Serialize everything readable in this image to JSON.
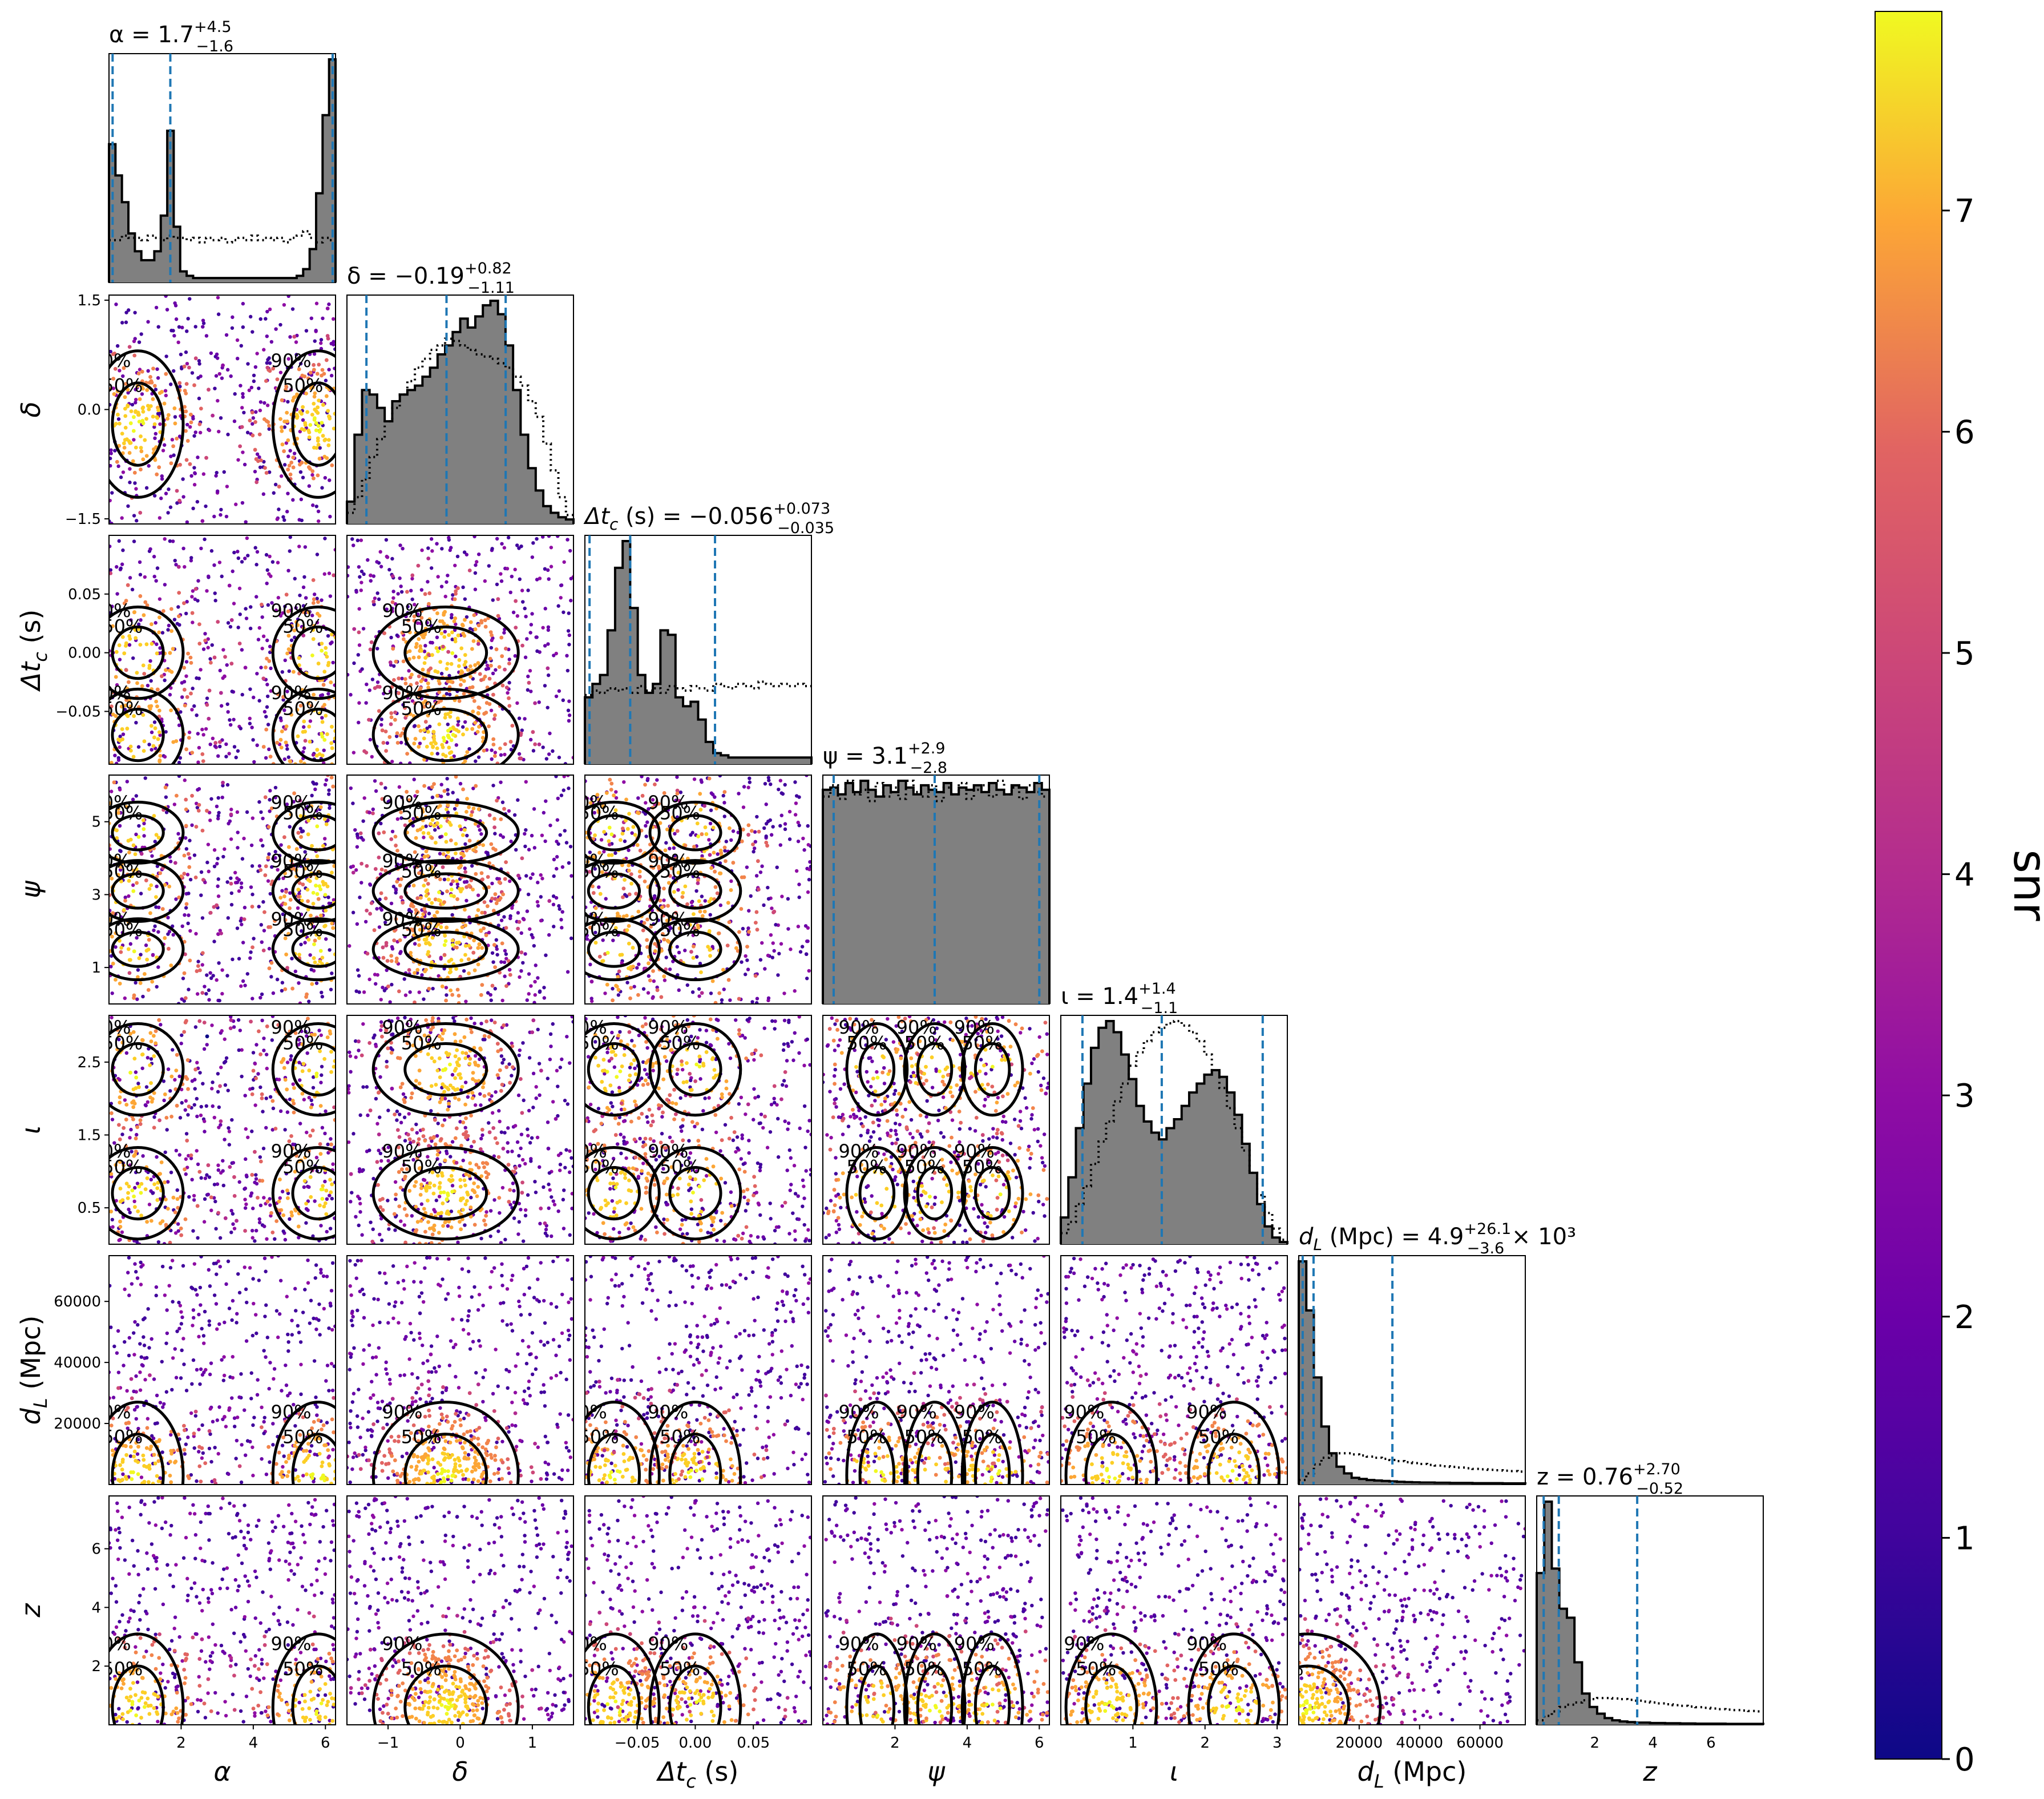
{
  "chart_data": {
    "type": "corner",
    "colorbar": {
      "label": "snr",
      "min": 0,
      "max": 7.9,
      "ticks": [
        "0",
        "1",
        "2",
        "3",
        "4",
        "5",
        "6",
        "7"
      ],
      "colormap": "plasma"
    },
    "colors": {
      "histogram_fill": "#808080",
      "quantile_line": "#1f77b4",
      "contour": "#000000"
    },
    "parameters": [
      {
        "key": "alpha",
        "label": "α",
        "range": [
          0,
          6.28
        ],
        "title_main": "α = 1.7",
        "title_sup": "+4.5",
        "title_sub": "−1.6",
        "title_tail": "",
        "quantiles": [
          0.1,
          1.7,
          6.2
        ],
        "x_ticks": [
          {
            "v": 2,
            "t": "2"
          },
          {
            "v": 4,
            "t": "4"
          },
          {
            "v": 6,
            "t": "6"
          }
        ],
        "y_ticks": [],
        "posterior": [
          0.62,
          0.48,
          0.36,
          0.22,
          0.14,
          0.1,
          0.1,
          0.14,
          0.3,
          0.68,
          0.25,
          0.05,
          0.03,
          0.02,
          0.02,
          0.02,
          0.02,
          0.02,
          0.02,
          0.02,
          0.02,
          0.02,
          0.02,
          0.02,
          0.02,
          0.02,
          0.02,
          0.02,
          0.02,
          0.03,
          0.06,
          0.15,
          0.4,
          0.75,
          1.0
        ],
        "prior": [
          0.19,
          0.19,
          0.21,
          0.2,
          0.2,
          0.19,
          0.21,
          0.2,
          0.19,
          0.21,
          0.2,
          0.2,
          0.19,
          0.2,
          0.18,
          0.2,
          0.19,
          0.2,
          0.18,
          0.19,
          0.2,
          0.19,
          0.21,
          0.19,
          0.2,
          0.19,
          0.2,
          0.18,
          0.2,
          0.21,
          0.23,
          0.2,
          0.18,
          0.2,
          0.19
        ]
      },
      {
        "key": "delta",
        "label": "δ",
        "range": [
          -1.57,
          1.57
        ],
        "title_main": "δ = −0.19",
        "title_sup": "+0.82",
        "title_sub": "−1.11",
        "title_tail": "",
        "quantiles": [
          -1.3,
          -0.19,
          0.63
        ],
        "x_ticks": [
          {
            "v": -1,
            "t": "−1"
          },
          {
            "v": 0,
            "t": "0"
          },
          {
            "v": 1,
            "t": "1"
          }
        ],
        "y_ticks": [
          {
            "v": 1.5,
            "t": "1.5"
          },
          {
            "v": 0,
            "t": "0.0"
          },
          {
            "v": -1.5,
            "t": "−1.5"
          }
        ],
        "posterior": [
          0.1,
          0.4,
          0.6,
          0.58,
          0.52,
          0.46,
          0.55,
          0.58,
          0.6,
          0.62,
          0.66,
          0.7,
          0.76,
          0.8,
          0.86,
          0.92,
          0.88,
          0.93,
          0.98,
          1.0,
          0.94,
          0.8,
          0.6,
          0.4,
          0.25,
          0.15,
          0.08,
          0.05,
          0.03,
          0.02
        ],
        "prior": [
          0.05,
          0.12,
          0.2,
          0.3,
          0.38,
          0.46,
          0.52,
          0.58,
          0.64,
          0.7,
          0.74,
          0.78,
          0.8,
          0.83,
          0.82,
          0.8,
          0.78,
          0.76,
          0.75,
          0.74,
          0.72,
          0.7,
          0.66,
          0.62,
          0.55,
          0.48,
          0.36,
          0.24,
          0.12,
          0.04
        ]
      },
      {
        "key": "dtc",
        "label": "Δt_c (s)",
        "range": [
          -0.095,
          0.1
        ],
        "title_main": "Δt",
        "title_sub_c": "c",
        "title_mid": " (s) = −0.056",
        "title_sup": "+0.073",
        "title_sub": "−0.035",
        "title_tail": "",
        "quantiles": [
          -0.091,
          -0.056,
          0.017
        ],
        "x_ticks": [
          {
            "v": -0.05,
            "t": "−0.05"
          },
          {
            "v": 0.0,
            "t": "0.00"
          },
          {
            "v": 0.05,
            "t": "0.05"
          }
        ],
        "y_ticks": [
          {
            "v": 0.05,
            "t": "0.05"
          },
          {
            "v": 0.0,
            "t": "0.00"
          },
          {
            "v": -0.05,
            "t": "−0.05"
          }
        ],
        "posterior": [
          0.3,
          0.36,
          0.4,
          0.6,
          0.88,
          1.0,
          0.7,
          0.4,
          0.32,
          0.36,
          0.6,
          0.58,
          0.3,
          0.26,
          0.28,
          0.2,
          0.1,
          0.05,
          0.04,
          0.03,
          0.03,
          0.03,
          0.03,
          0.03,
          0.03,
          0.03,
          0.03,
          0.03,
          0.03,
          0.03
        ],
        "prior": [
          0.31,
          0.33,
          0.32,
          0.34,
          0.33,
          0.34,
          0.32,
          0.35,
          0.33,
          0.34,
          0.32,
          0.35,
          0.34,
          0.33,
          0.35,
          0.34,
          0.33,
          0.36,
          0.35,
          0.34,
          0.36,
          0.35,
          0.34,
          0.37,
          0.36,
          0.35,
          0.36,
          0.35,
          0.36,
          0.35
        ]
      },
      {
        "key": "psi",
        "label": "ψ",
        "range": [
          0,
          6.28
        ],
        "title_main": "ψ = 3.1",
        "title_sup": "+2.9",
        "title_sub": "−2.8",
        "title_tail": "",
        "quantiles": [
          0.3,
          3.1,
          6.0
        ],
        "x_ticks": [
          {
            "v": 2,
            "t": "2"
          },
          {
            "v": 4,
            "t": "4"
          },
          {
            "v": 6,
            "t": "6"
          }
        ],
        "y_ticks": [
          {
            "v": 5,
            "t": "5"
          },
          {
            "v": 3,
            "t": "3"
          },
          {
            "v": 1,
            "t": "1"
          }
        ],
        "posterior": [
          0.95,
          0.96,
          0.93,
          0.98,
          0.94,
          0.99,
          0.95,
          0.92,
          0.97,
          0.94,
          0.99,
          0.96,
          0.93,
          0.97,
          0.95,
          0.94,
          0.98,
          0.93,
          0.96,
          0.95,
          0.97,
          0.94,
          0.98,
          0.95,
          0.93,
          0.97,
          0.96,
          0.94,
          0.98,
          0.95
        ],
        "prior": [
          0.92,
          0.97,
          0.91,
          0.99,
          0.93,
          0.95,
          0.9,
          0.98,
          0.92,
          0.96,
          0.91,
          0.99,
          0.94,
          0.92,
          0.97,
          0.9,
          0.96,
          0.93,
          0.98,
          0.91,
          0.95,
          0.97,
          0.92,
          0.99,
          0.93,
          0.96,
          0.91,
          0.97,
          0.94,
          0.92
        ]
      },
      {
        "key": "iota",
        "label": "ι",
        "range": [
          0,
          3.1416
        ],
        "title_main": "ι = 1.4",
        "title_sup": "+1.4",
        "title_sub": "−1.1",
        "title_tail": "",
        "quantiles": [
          0.3,
          1.4,
          2.8
        ],
        "x_ticks": [
          {
            "v": 1,
            "t": "1"
          },
          {
            "v": 2,
            "t": "2"
          },
          {
            "v": 3,
            "t": "3"
          }
        ],
        "y_ticks": [
          {
            "v": 2.5,
            "t": "2.5"
          },
          {
            "v": 1.5,
            "t": "1.5"
          },
          {
            "v": 0.5,
            "t": "0.5"
          }
        ],
        "posterior": [
          0.12,
          0.3,
          0.52,
          0.72,
          0.88,
          0.97,
          1.0,
          0.95,
          0.85,
          0.74,
          0.62,
          0.55,
          0.5,
          0.47,
          0.52,
          0.56,
          0.62,
          0.68,
          0.72,
          0.76,
          0.78,
          0.75,
          0.68,
          0.58,
          0.45,
          0.32,
          0.18,
          0.08,
          0.03,
          0.01
        ],
        "prior": [
          0.05,
          0.1,
          0.18,
          0.26,
          0.36,
          0.46,
          0.55,
          0.64,
          0.72,
          0.8,
          0.86,
          0.91,
          0.95,
          0.97,
          0.99,
          1.0,
          0.98,
          0.95,
          0.91,
          0.85,
          0.78,
          0.7,
          0.61,
          0.52,
          0.42,
          0.32,
          0.22,
          0.14,
          0.07,
          0.02
        ]
      },
      {
        "key": "dL",
        "label": "d_L (Mpc)",
        "range": [
          0,
          75000
        ],
        "title_main": "d",
        "title_sub_c": "L",
        "title_mid": " (Mpc) = 4.9",
        "title_sup": "+26.1",
        "title_sub": "−3.6",
        "title_tail": " × 10³",
        "quantiles": [
          1300,
          4900,
          31000
        ],
        "x_ticks": [
          {
            "v": 20000,
            "t": "20000"
          },
          {
            "v": 40000,
            "t": "40000"
          },
          {
            "v": 60000,
            "t": "60000"
          }
        ],
        "y_ticks": [
          {
            "v": 60000,
            "t": "60000"
          },
          {
            "v": 40000,
            "t": "40000"
          },
          {
            "v": 20000,
            "t": "20000"
          }
        ],
        "posterior": [
          1.0,
          0.78,
          0.48,
          0.26,
          0.14,
          0.08,
          0.05,
          0.03,
          0.025,
          0.02,
          0.018,
          0.016,
          0.014,
          0.012,
          0.011,
          0.01,
          0.009,
          0.009,
          0.008,
          0.008,
          0.007,
          0.007,
          0.007,
          0.006,
          0.006,
          0.006,
          0.006,
          0.005,
          0.005,
          0.005
        ],
        "prior": [
          0.02,
          0.05,
          0.09,
          0.12,
          0.13,
          0.14,
          0.14,
          0.135,
          0.13,
          0.125,
          0.12,
          0.115,
          0.11,
          0.105,
          0.1,
          0.096,
          0.092,
          0.088,
          0.085,
          0.082,
          0.079,
          0.076,
          0.073,
          0.07,
          0.068,
          0.066,
          0.064,
          0.062,
          0.06,
          0.058
        ]
      },
      {
        "key": "z",
        "label": "z",
        "range": [
          0,
          7.8
        ],
        "title_main": "z = 0.76",
        "title_sup": "+2.70",
        "title_sub": "−0.52",
        "title_tail": "",
        "quantiles": [
          0.24,
          0.76,
          3.46
        ],
        "x_ticks": [
          {
            "v": 2,
            "t": "2"
          },
          {
            "v": 4,
            "t": "4"
          },
          {
            "v": 6,
            "t": "6"
          }
        ],
        "y_ticks": [
          {
            "v": 6,
            "t": "6"
          },
          {
            "v": 4,
            "t": "4"
          },
          {
            "v": 2,
            "t": "2"
          }
        ],
        "posterior": [
          0.68,
          1.0,
          0.7,
          0.52,
          0.48,
          0.28,
          0.14,
          0.08,
          0.05,
          0.03,
          0.02,
          0.015,
          0.012,
          0.01,
          0.01,
          0.008,
          0.008,
          0.007,
          0.007,
          0.006,
          0.006,
          0.005,
          0.005,
          0.005,
          0.005,
          0.004,
          0.004,
          0.004,
          0.004,
          0.004
        ],
        "prior": [
          0.02,
          0.04,
          0.06,
          0.08,
          0.09,
          0.1,
          0.11,
          0.115,
          0.12,
          0.12,
          0.118,
          0.115,
          0.112,
          0.108,
          0.104,
          0.1,
          0.096,
          0.092,
          0.088,
          0.085,
          0.082,
          0.079,
          0.076,
          0.073,
          0.07,
          0.068,
          0.066,
          0.064,
          0.062,
          0.06
        ]
      }
    ],
    "scatter_clusters": {
      "alpha": [
        0.8,
        5.8
      ],
      "delta": [
        -0.2
      ],
      "dtc": [
        -0.07,
        0.0
      ],
      "psi": [
        1.5,
        3.1,
        4.7
      ],
      "iota": [
        0.7,
        2.4
      ],
      "dL": [
        3000
      ],
      "z": [
        0.6
      ]
    },
    "contour_labels": [
      "50%",
      "90%"
    ]
  }
}
